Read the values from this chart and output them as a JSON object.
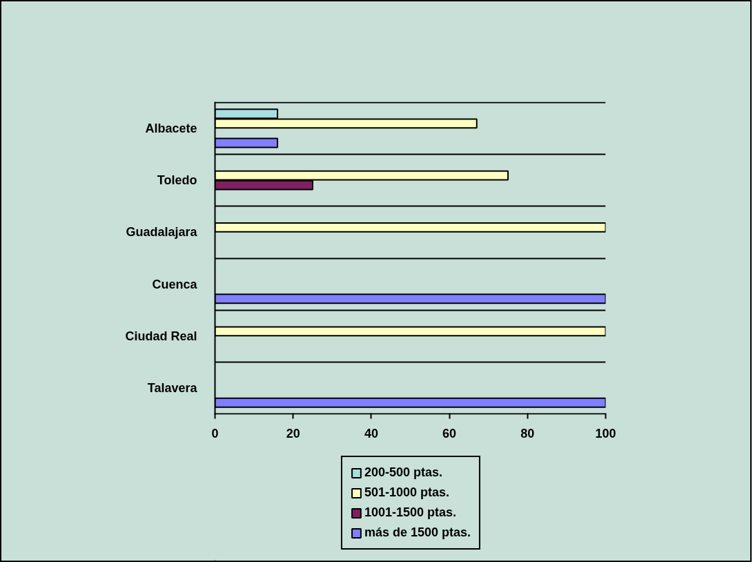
{
  "chart_data": {
    "type": "bar",
    "orientation": "horizontal",
    "categories": [
      "Albacete",
      "Toledo",
      "Guadalajara",
      "Cuenca",
      "Ciudad Real",
      "Talavera"
    ],
    "series": [
      {
        "name": "200-500 ptas.",
        "color": "#a6e0e0",
        "values": [
          16,
          null,
          null,
          null,
          null,
          null
        ]
      },
      {
        "name": "501-1000 ptas.",
        "color": "#ffffc0",
        "values": [
          67,
          75,
          100,
          null,
          100,
          null
        ]
      },
      {
        "name": "1001-1500 ptas.",
        "color": "#802060",
        "values": [
          null,
          25,
          null,
          null,
          null,
          null
        ]
      },
      {
        "name": "más de 1500 ptas.",
        "color": "#8080ff",
        "values": [
          16,
          null,
          null,
          100,
          null,
          100
        ]
      }
    ],
    "xlim": [
      0,
      100
    ],
    "xticks": [
      0,
      20,
      40,
      60,
      80,
      100
    ],
    "grid": "y",
    "legend": "bottom"
  }
}
